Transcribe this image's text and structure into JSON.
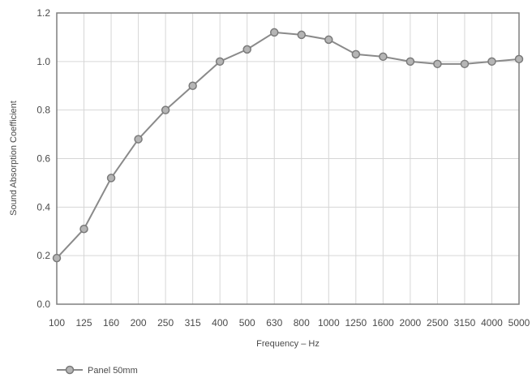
{
  "chart_data": {
    "type": "line",
    "xlabel": "Frequency – Hz",
    "ylabel": "Sound Absorption Coefficient",
    "categories": [
      "100",
      "125",
      "160",
      "200",
      "250",
      "315",
      "400",
      "500",
      "630",
      "800",
      "1000",
      "1250",
      "1600",
      "2000",
      "2500",
      "3150",
      "4000",
      "5000"
    ],
    "ylim": [
      0,
      1.2
    ],
    "yticks": [
      "0.0",
      "0.2",
      "0.4",
      "0.6",
      "0.8",
      "1.0",
      "1.2"
    ],
    "grid": true,
    "legend_position": "bottom-left",
    "series": [
      {
        "name": "Panel 50mm",
        "values": [
          0.19,
          0.31,
          0.52,
          0.68,
          0.8,
          0.9,
          1.0,
          1.05,
          1.12,
          1.11,
          1.09,
          1.03,
          1.02,
          1.0,
          0.99,
          0.99,
          1.0,
          1.01
        ]
      }
    ],
    "colors": {
      "line": "#8a8a8a",
      "marker_fill": "#b5b5b5",
      "marker_stroke": "#7a7a7a",
      "grid": "#d6d6d6",
      "frame": "#7f7f7f"
    }
  }
}
